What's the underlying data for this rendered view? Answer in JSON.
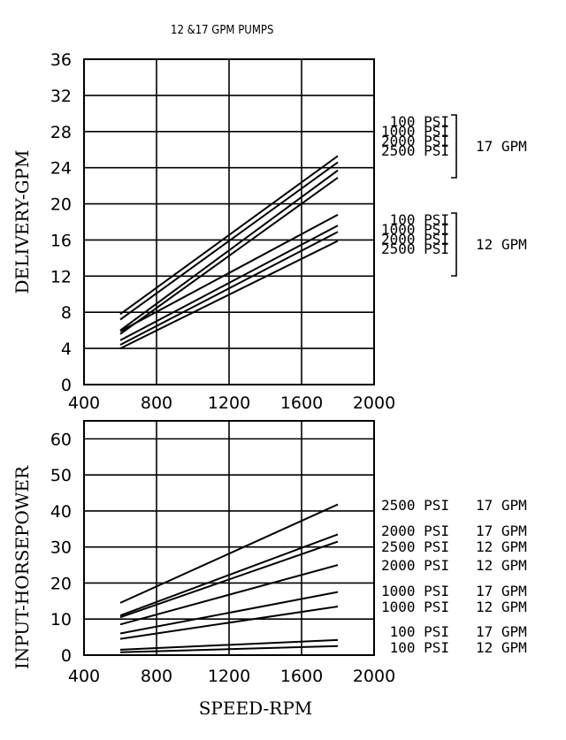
{
  "title": "12 &17 GPM PUMPS",
  "chart_data": [
    {
      "type": "line",
      "ylabel": "DELIVERY-GPM",
      "xlim": [
        400,
        2000
      ],
      "ylim": [
        0,
        36
      ],
      "xticks": [
        "400",
        "800",
        "1200",
        "1600",
        "2000"
      ],
      "yticks": [
        "0",
        "4",
        "8",
        "12",
        "16",
        "20",
        "24",
        "28",
        "32",
        "36"
      ],
      "grid": true,
      "groups": [
        {
          "name": "17 GPM",
          "labels": [
            "100 PSI",
            "1000 PSI",
            "2000 PSI",
            "2500 PSI"
          ]
        },
        {
          "name": "12 GPM",
          "labels": [
            "100 PSI",
            "1000 PSI",
            "2000 PSI",
            "2500 PSI"
          ]
        }
      ],
      "series": [
        {
          "x": [
            600,
            1800
          ],
          "y": [
            7.8,
            25.3
          ]
        },
        {
          "x": [
            600,
            1800
          ],
          "y": [
            7.2,
            24.6
          ]
        },
        {
          "x": [
            600,
            1800
          ],
          "y": [
            6.0,
            23.7
          ]
        },
        {
          "x": [
            600,
            1800
          ],
          "y": [
            5.6,
            22.9
          ]
        },
        {
          "x": [
            600,
            1800
          ],
          "y": [
            5.9,
            18.8
          ]
        },
        {
          "x": [
            600,
            1800
          ],
          "y": [
            4.9,
            17.6
          ]
        },
        {
          "x": [
            600,
            1800
          ],
          "y": [
            4.4,
            16.9
          ]
        },
        {
          "x": [
            600,
            1800
          ],
          "y": [
            4.0,
            15.9
          ]
        }
      ]
    },
    {
      "type": "line",
      "xlabel": "SPEED-RPM",
      "ylabel": "INPUT-HORSEPOWER",
      "xlim": [
        400,
        2000
      ],
      "ylim": [
        0,
        65
      ],
      "xticks": [
        "400",
        "800",
        "1200",
        "1600",
        "2000"
      ],
      "yticks": [
        "0",
        "10",
        "20",
        "30",
        "40",
        "50",
        "60"
      ],
      "grid": true,
      "series": [
        {
          "label": "2500 PSI",
          "pump": "17 GPM",
          "x": [
            600,
            1800
          ],
          "y": [
            14.5,
            41.8
          ]
        },
        {
          "label": "2000 PSI",
          "pump": "17 GPM",
          "x": [
            600,
            1800
          ],
          "y": [
            11.0,
            33.5
          ]
        },
        {
          "label": "2500 PSI",
          "pump": "12 GPM",
          "x": [
            600,
            1800
          ],
          "y": [
            10.5,
            31.5
          ]
        },
        {
          "label": "2000 PSI",
          "pump": "12 GPM",
          "x": [
            600,
            1800
          ],
          "y": [
            8.5,
            25.0
          ]
        },
        {
          "label": "1000 PSI",
          "pump": "17 GPM",
          "x": [
            600,
            1800
          ],
          "y": [
            6.0,
            17.5
          ]
        },
        {
          "label": "1000 PSI",
          "pump": "12 GPM",
          "x": [
            600,
            1800
          ],
          "y": [
            4.5,
            13.5
          ]
        },
        {
          "label": "100 PSI",
          "pump": "17 GPM",
          "x": [
            600,
            1800
          ],
          "y": [
            1.5,
            4.2
          ]
        },
        {
          "label": "100 PSI",
          "pump": "12 GPM",
          "x": [
            600,
            1800
          ],
          "y": [
            0.8,
            2.5
          ]
        }
      ]
    }
  ]
}
